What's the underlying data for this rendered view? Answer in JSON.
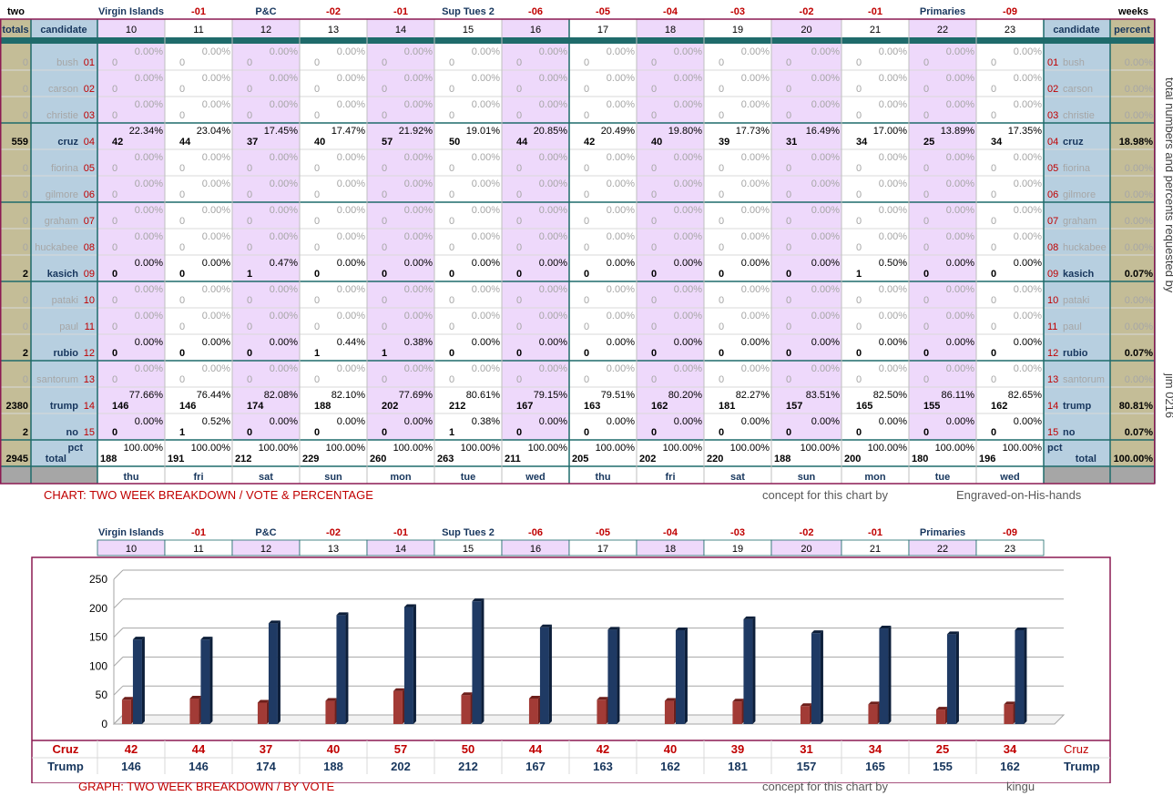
{
  "title_left": "two",
  "title_right": "weeks",
  "headers": {
    "totals": "totals",
    "candidate": "candidate",
    "percent": "percent",
    "pct": "pct",
    "total": "total"
  },
  "annotations": [
    "Virgin Islands",
    "-01",
    "P&C",
    "-02",
    "-01",
    "Sup Tues 2",
    "-06",
    "-05",
    "-04",
    "-03",
    "-02",
    "-01",
    "Primaries",
    "-09"
  ],
  "days": [
    "10",
    "11",
    "12",
    "13",
    "14",
    "15",
    "16",
    "17",
    "18",
    "19",
    "20",
    "21",
    "22",
    "23"
  ],
  "weekdays": [
    "thu",
    "fri",
    "sat",
    "sun",
    "mon",
    "tue",
    "wed",
    "thu",
    "fri",
    "sat",
    "sun",
    "mon",
    "tue",
    "wed"
  ],
  "candidates": [
    {
      "num": "01",
      "name": "bush",
      "total": "0",
      "pct": "0.00%",
      "votes": [
        "0",
        "0",
        "0",
        "0",
        "0",
        "0",
        "0",
        "0",
        "0",
        "0",
        "0",
        "0",
        "0",
        "0"
      ],
      "pcts": [
        "0.00%",
        "0.00%",
        "0.00%",
        "0.00%",
        "0.00%",
        "0.00%",
        "0.00%",
        "0.00%",
        "0.00%",
        "0.00%",
        "0.00%",
        "0.00%",
        "0.00%",
        "0.00%"
      ]
    },
    {
      "num": "02",
      "name": "carson",
      "total": "0",
      "pct": "0.00%",
      "votes": [
        "0",
        "0",
        "0",
        "0",
        "0",
        "0",
        "0",
        "0",
        "0",
        "0",
        "0",
        "0",
        "0",
        "0"
      ],
      "pcts": [
        "0.00%",
        "0.00%",
        "0.00%",
        "0.00%",
        "0.00%",
        "0.00%",
        "0.00%",
        "0.00%",
        "0.00%",
        "0.00%",
        "0.00%",
        "0.00%",
        "0.00%",
        "0.00%"
      ]
    },
    {
      "num": "03",
      "name": "christie",
      "total": "0",
      "pct": "0.00%",
      "votes": [
        "0",
        "0",
        "0",
        "0",
        "0",
        "0",
        "0",
        "0",
        "0",
        "0",
        "0",
        "0",
        "0",
        "0"
      ],
      "pcts": [
        "0.00%",
        "0.00%",
        "0.00%",
        "0.00%",
        "0.00%",
        "0.00%",
        "0.00%",
        "0.00%",
        "0.00%",
        "0.00%",
        "0.00%",
        "0.00%",
        "0.00%",
        "0.00%"
      ]
    },
    {
      "num": "04",
      "name": "cruz",
      "total": "559",
      "pct": "18.98%",
      "votes": [
        "42",
        "44",
        "37",
        "40",
        "57",
        "50",
        "44",
        "42",
        "40",
        "39",
        "31",
        "34",
        "25",
        "34"
      ],
      "pcts": [
        "22.34%",
        "23.04%",
        "17.45%",
        "17.47%",
        "21.92%",
        "19.01%",
        "20.85%",
        "20.49%",
        "19.80%",
        "17.73%",
        "16.49%",
        "17.00%",
        "13.89%",
        "17.35%"
      ]
    },
    {
      "num": "05",
      "name": "fiorina",
      "total": "0",
      "pct": "0.00%",
      "votes": [
        "0",
        "0",
        "0",
        "0",
        "0",
        "0",
        "0",
        "0",
        "0",
        "0",
        "0",
        "0",
        "0",
        "0"
      ],
      "pcts": [
        "0.00%",
        "0.00%",
        "0.00%",
        "0.00%",
        "0.00%",
        "0.00%",
        "0.00%",
        "0.00%",
        "0.00%",
        "0.00%",
        "0.00%",
        "0.00%",
        "0.00%",
        "0.00%"
      ]
    },
    {
      "num": "06",
      "name": "gilmore",
      "total": "0",
      "pct": "0.00%",
      "votes": [
        "0",
        "0",
        "0",
        "0",
        "0",
        "0",
        "0",
        "0",
        "0",
        "0",
        "0",
        "0",
        "0",
        "0"
      ],
      "pcts": [
        "0.00%",
        "0.00%",
        "0.00%",
        "0.00%",
        "0.00%",
        "0.00%",
        "0.00%",
        "0.00%",
        "0.00%",
        "0.00%",
        "0.00%",
        "0.00%",
        "0.00%",
        "0.00%"
      ]
    },
    {
      "num": "07",
      "name": "graham",
      "total": "0",
      "pct": "0.00%",
      "votes": [
        "0",
        "0",
        "0",
        "0",
        "0",
        "0",
        "0",
        "0",
        "0",
        "0",
        "0",
        "0",
        "0",
        "0"
      ],
      "pcts": [
        "0.00%",
        "0.00%",
        "0.00%",
        "0.00%",
        "0.00%",
        "0.00%",
        "0.00%",
        "0.00%",
        "0.00%",
        "0.00%",
        "0.00%",
        "0.00%",
        "0.00%",
        "0.00%"
      ]
    },
    {
      "num": "08",
      "name": "huckabee",
      "total": "0",
      "pct": "0.00%",
      "votes": [
        "0",
        "0",
        "0",
        "0",
        "0",
        "0",
        "0",
        "0",
        "0",
        "0",
        "0",
        "0",
        "0",
        "0"
      ],
      "pcts": [
        "0.00%",
        "0.00%",
        "0.00%",
        "0.00%",
        "0.00%",
        "0.00%",
        "0.00%",
        "0.00%",
        "0.00%",
        "0.00%",
        "0.00%",
        "0.00%",
        "0.00%",
        "0.00%"
      ]
    },
    {
      "num": "09",
      "name": "kasich",
      "total": "2",
      "pct": "0.07%",
      "votes": [
        "0",
        "0",
        "1",
        "0",
        "0",
        "0",
        "0",
        "0",
        "0",
        "0",
        "0",
        "1",
        "0",
        "0"
      ],
      "pcts": [
        "0.00%",
        "0.00%",
        "0.47%",
        "0.00%",
        "0.00%",
        "0.00%",
        "0.00%",
        "0.00%",
        "0.00%",
        "0.00%",
        "0.00%",
        "0.50%",
        "0.00%",
        "0.00%"
      ]
    },
    {
      "num": "10",
      "name": "pataki",
      "total": "0",
      "pct": "0.00%",
      "votes": [
        "0",
        "0",
        "0",
        "0",
        "0",
        "0",
        "0",
        "0",
        "0",
        "0",
        "0",
        "0",
        "0",
        "0"
      ],
      "pcts": [
        "0.00%",
        "0.00%",
        "0.00%",
        "0.00%",
        "0.00%",
        "0.00%",
        "0.00%",
        "0.00%",
        "0.00%",
        "0.00%",
        "0.00%",
        "0.00%",
        "0.00%",
        "0.00%"
      ]
    },
    {
      "num": "11",
      "name": "paul",
      "total": "0",
      "pct": "0.00%",
      "votes": [
        "0",
        "0",
        "0",
        "0",
        "0",
        "0",
        "0",
        "0",
        "0",
        "0",
        "0",
        "0",
        "0",
        "0"
      ],
      "pcts": [
        "0.00%",
        "0.00%",
        "0.00%",
        "0.00%",
        "0.00%",
        "0.00%",
        "0.00%",
        "0.00%",
        "0.00%",
        "0.00%",
        "0.00%",
        "0.00%",
        "0.00%",
        "0.00%"
      ]
    },
    {
      "num": "12",
      "name": "rubio",
      "total": "2",
      "pct": "0.07%",
      "votes": [
        "0",
        "0",
        "0",
        "1",
        "1",
        "0",
        "0",
        "0",
        "0",
        "0",
        "0",
        "0",
        "0",
        "0"
      ],
      "pcts": [
        "0.00%",
        "0.00%",
        "0.00%",
        "0.44%",
        "0.38%",
        "0.00%",
        "0.00%",
        "0.00%",
        "0.00%",
        "0.00%",
        "0.00%",
        "0.00%",
        "0.00%",
        "0.00%"
      ]
    },
    {
      "num": "13",
      "name": "santorum",
      "total": "0",
      "pct": "0.00%",
      "votes": [
        "0",
        "0",
        "0",
        "0",
        "0",
        "0",
        "0",
        "0",
        "0",
        "0",
        "0",
        "0",
        "0",
        "0"
      ],
      "pcts": [
        "0.00%",
        "0.00%",
        "0.00%",
        "0.00%",
        "0.00%",
        "0.00%",
        "0.00%",
        "0.00%",
        "0.00%",
        "0.00%",
        "0.00%",
        "0.00%",
        "0.00%",
        "0.00%"
      ]
    },
    {
      "num": "14",
      "name": "trump",
      "total": "2380",
      "pct": "80.81%",
      "votes": [
        "146",
        "146",
        "174",
        "188",
        "202",
        "212",
        "167",
        "163",
        "162",
        "181",
        "157",
        "165",
        "155",
        "162"
      ],
      "pcts": [
        "77.66%",
        "76.44%",
        "82.08%",
        "82.10%",
        "77.69%",
        "80.61%",
        "79.15%",
        "79.51%",
        "80.20%",
        "82.27%",
        "83.51%",
        "82.50%",
        "86.11%",
        "82.65%"
      ]
    },
    {
      "num": "15",
      "name": "no",
      "total": "2",
      "pct": "0.07%",
      "votes": [
        "0",
        "1",
        "0",
        "0",
        "0",
        "1",
        "0",
        "0",
        "0",
        "0",
        "0",
        "0",
        "0",
        "0"
      ],
      "pcts": [
        "0.00%",
        "0.52%",
        "0.00%",
        "0.00%",
        "0.00%",
        "0.38%",
        "0.00%",
        "0.00%",
        "0.00%",
        "0.00%",
        "0.00%",
        "0.00%",
        "0.00%",
        "0.00%"
      ]
    }
  ],
  "totals_row": {
    "grand_total": "2945",
    "grand_pct": "100.00%",
    "votes": [
      "188",
      "191",
      "212",
      "229",
      "260",
      "263",
      "211",
      "205",
      "202",
      "220",
      "188",
      "200",
      "180",
      "196"
    ],
    "pcts": [
      "100.00%",
      "100.00%",
      "100.00%",
      "100.00%",
      "100.00%",
      "100.00%",
      "100.00%",
      "100.00%",
      "100.00%",
      "100.00%",
      "100.00%",
      "100.00%",
      "100.00%",
      "100.00%"
    ]
  },
  "chart1_caption": "CHART: TWO WEEK BREAKDOWN / VOTE & PERCENTAGE",
  "chart1_concept": "concept for this chart by",
  "chart1_author": "Engraved-on-His-hands",
  "graph_caption": "GRAPH: TWO WEEK BREAKDOWN / BY VOTE",
  "graph_concept": "concept for this chart by",
  "graph_author": "kingu",
  "side_note": "total numbers and percents requested by",
  "side_credit": "jim 0216",
  "colors": {
    "cruz": "#9b2f2a",
    "trump": "#17365d",
    "maroon": "#8b1a52",
    "teal": "#1f6b6b",
    "red_label": "#c00000",
    "navy_label": "#17365d"
  },
  "chart_data": {
    "type": "bar",
    "categories": [
      "10",
      "11",
      "12",
      "13",
      "14",
      "15",
      "16",
      "17",
      "18",
      "19",
      "20",
      "21",
      "22",
      "23"
    ],
    "series": [
      {
        "name": "Cruz",
        "values": [
          42,
          44,
          37,
          40,
          57,
          50,
          44,
          42,
          40,
          39,
          31,
          34,
          25,
          34
        ]
      },
      {
        "name": "Trump",
        "values": [
          146,
          146,
          174,
          188,
          202,
          212,
          167,
          163,
          162,
          181,
          157,
          165,
          155,
          162
        ]
      }
    ],
    "yticks": [
      0,
      50,
      100,
      150,
      200,
      250
    ],
    "ylim": [
      0,
      250
    ],
    "grid": true
  }
}
